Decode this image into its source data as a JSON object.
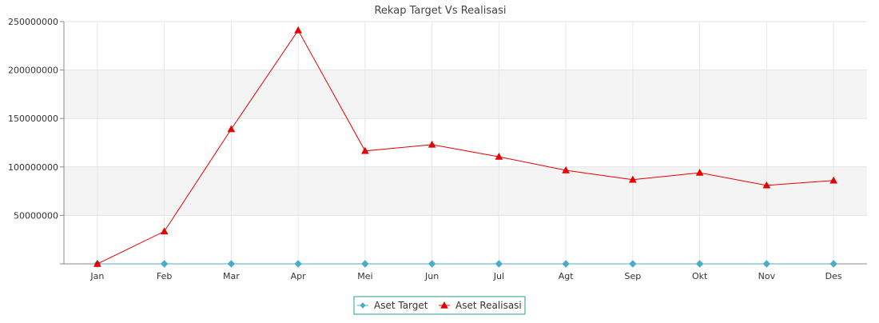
{
  "chart_data": {
    "type": "line",
    "title": "Rekap Target Vs Realisasi",
    "xlabel": "",
    "ylabel": "",
    "categories": [
      "Jan",
      "Feb",
      "Mar",
      "Apr",
      "Mei",
      "Jun",
      "Jul",
      "Agt",
      "Sep",
      "Okt",
      "Nov",
      "Des"
    ],
    "ylim": [
      0,
      250000000
    ],
    "yticks": [
      "50000000",
      "100000000",
      "150000000",
      "200000000",
      "250000000"
    ],
    "grid": true,
    "legend_position": "bottom-center",
    "series": [
      {
        "name": "Aset Target",
        "color": "#4bacc6",
        "marker": "diamond",
        "values": [
          0,
          0,
          0,
          0,
          0,
          0,
          0,
          0,
          0,
          0,
          0,
          0
        ]
      },
      {
        "name": "Aset Realisasi",
        "color": "#e60000",
        "marker": "triangle",
        "values": [
          0,
          33500000,
          139000000,
          241000000,
          116500000,
          123000000,
          110500000,
          96500000,
          86800000,
          94000000,
          81000000,
          86000000
        ]
      }
    ]
  }
}
